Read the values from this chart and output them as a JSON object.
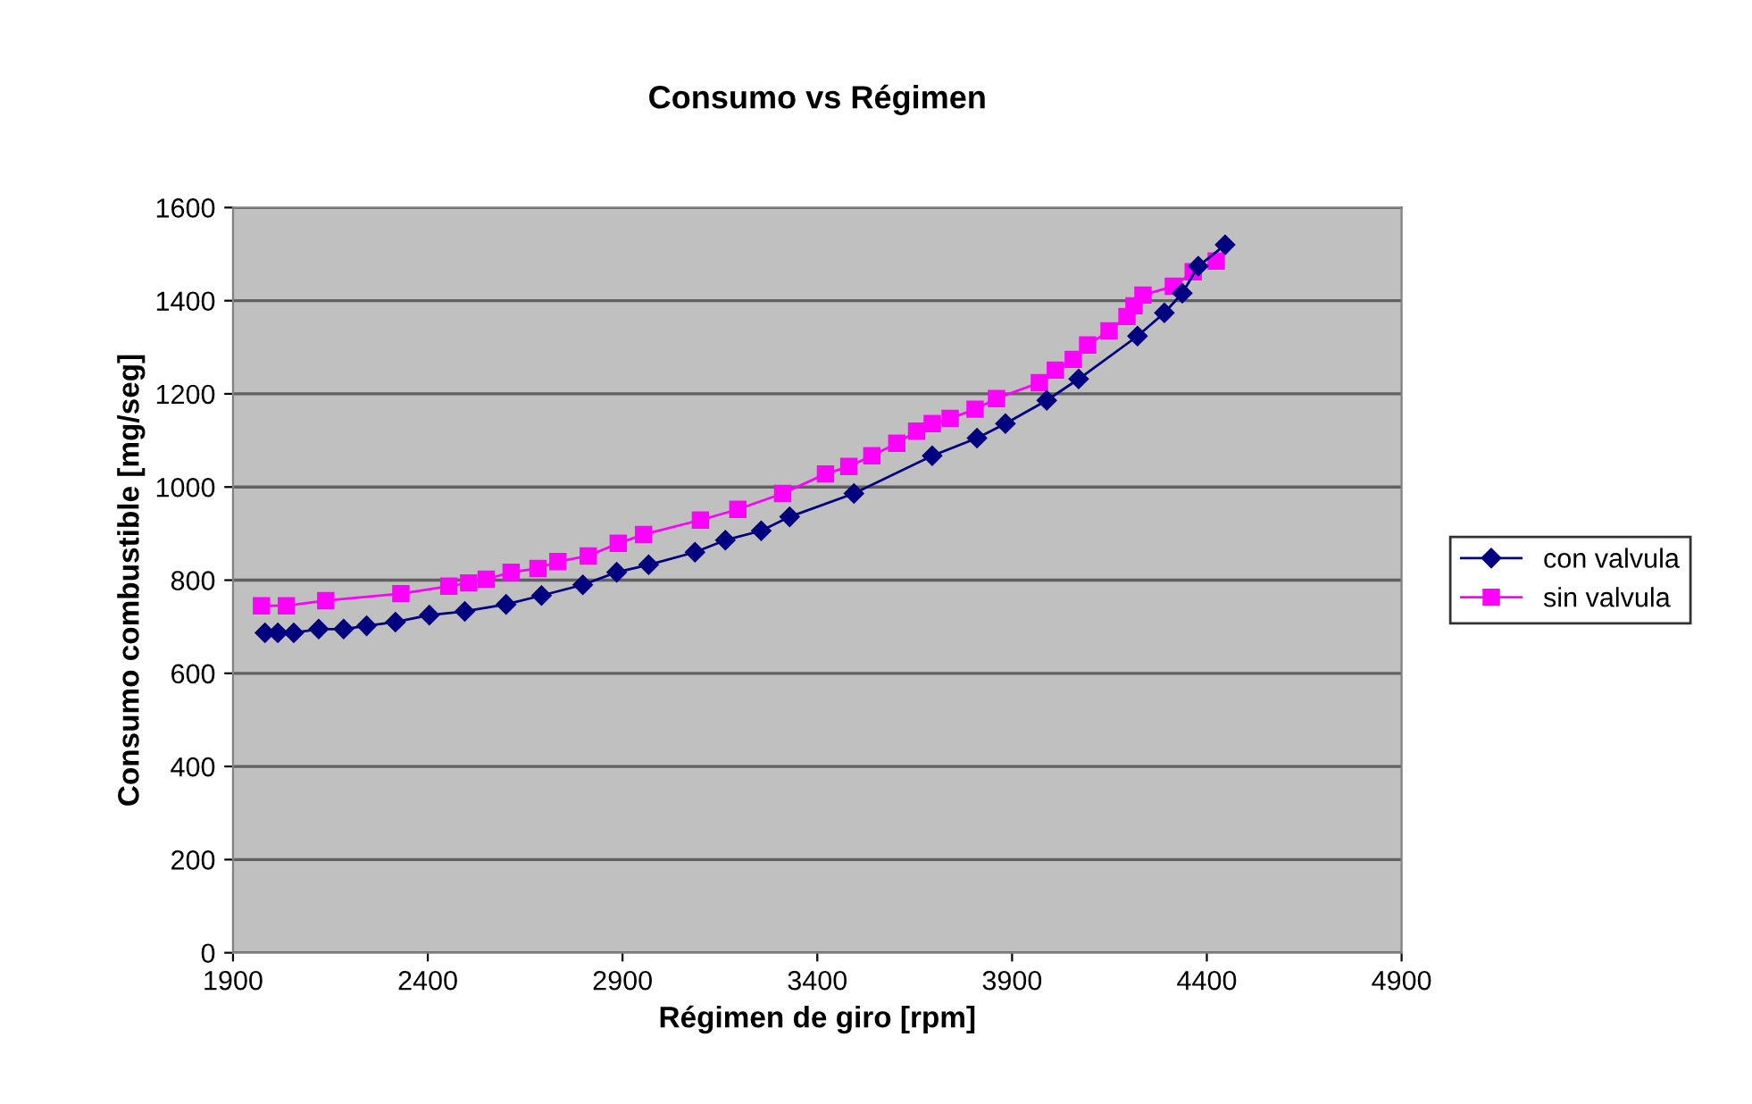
{
  "chart_data": {
    "type": "line",
    "title": "Consumo vs Régimen",
    "xlabel": "Régimen de giro [rpm]",
    "ylabel": "Consumo combustible [mg/seg]",
    "xlim": [
      1900,
      4900
    ],
    "xticks": [
      1900,
      2400,
      2900,
      3400,
      3900,
      4400,
      4900
    ],
    "ylim": [
      0,
      1600
    ],
    "yticks": [
      0,
      200,
      400,
      600,
      800,
      1000,
      1200,
      1400,
      1600
    ],
    "grid": "y",
    "legend": "right",
    "series": [
      {
        "name": "con valvula",
        "color": "#000080",
        "marker": "diamond",
        "x": [
          1982,
          2015,
          2056,
          2120,
          2184,
          2243,
          2317,
          2404,
          2495,
          2601,
          2692,
          2798,
          2885,
          2967,
          3086,
          3164,
          3256,
          3329,
          3494,
          3695,
          3810,
          3883,
          3989,
          4071,
          4222,
          4291,
          4337,
          4378,
          4447
        ],
        "values": [
          687,
          687,
          687,
          695,
          695,
          702,
          710,
          725,
          733,
          748,
          767,
          790,
          817,
          833,
          860,
          886,
          906,
          936,
          986,
          1067,
          1105,
          1136,
          1186,
          1232,
          1324,
          1374,
          1416,
          1474,
          1520
        ]
      },
      {
        "name": "sin valvula",
        "color": "#ff00ff",
        "marker": "square",
        "x": [
          1973,
          2037,
          2138,
          2331,
          2454,
          2505,
          2550,
          2614,
          2683,
          2734,
          2812,
          2889,
          2954,
          3100,
          3196,
          3311,
          3421,
          3481,
          3540,
          3604,
          3655,
          3695,
          3741,
          3805,
          3860,
          3970,
          4011,
          4057,
          4094,
          4149,
          4195,
          4213,
          4236,
          4314,
          4365,
          4424
        ],
        "values": [
          745,
          745,
          756,
          771,
          787,
          794,
          802,
          817,
          825,
          840,
          852,
          879,
          898,
          929,
          952,
          986,
          1028,
          1044,
          1067,
          1094,
          1120,
          1136,
          1147,
          1167,
          1190,
          1224,
          1251,
          1274,
          1305,
          1335,
          1366,
          1389,
          1412,
          1431,
          1462,
          1485
        ]
      }
    ]
  }
}
